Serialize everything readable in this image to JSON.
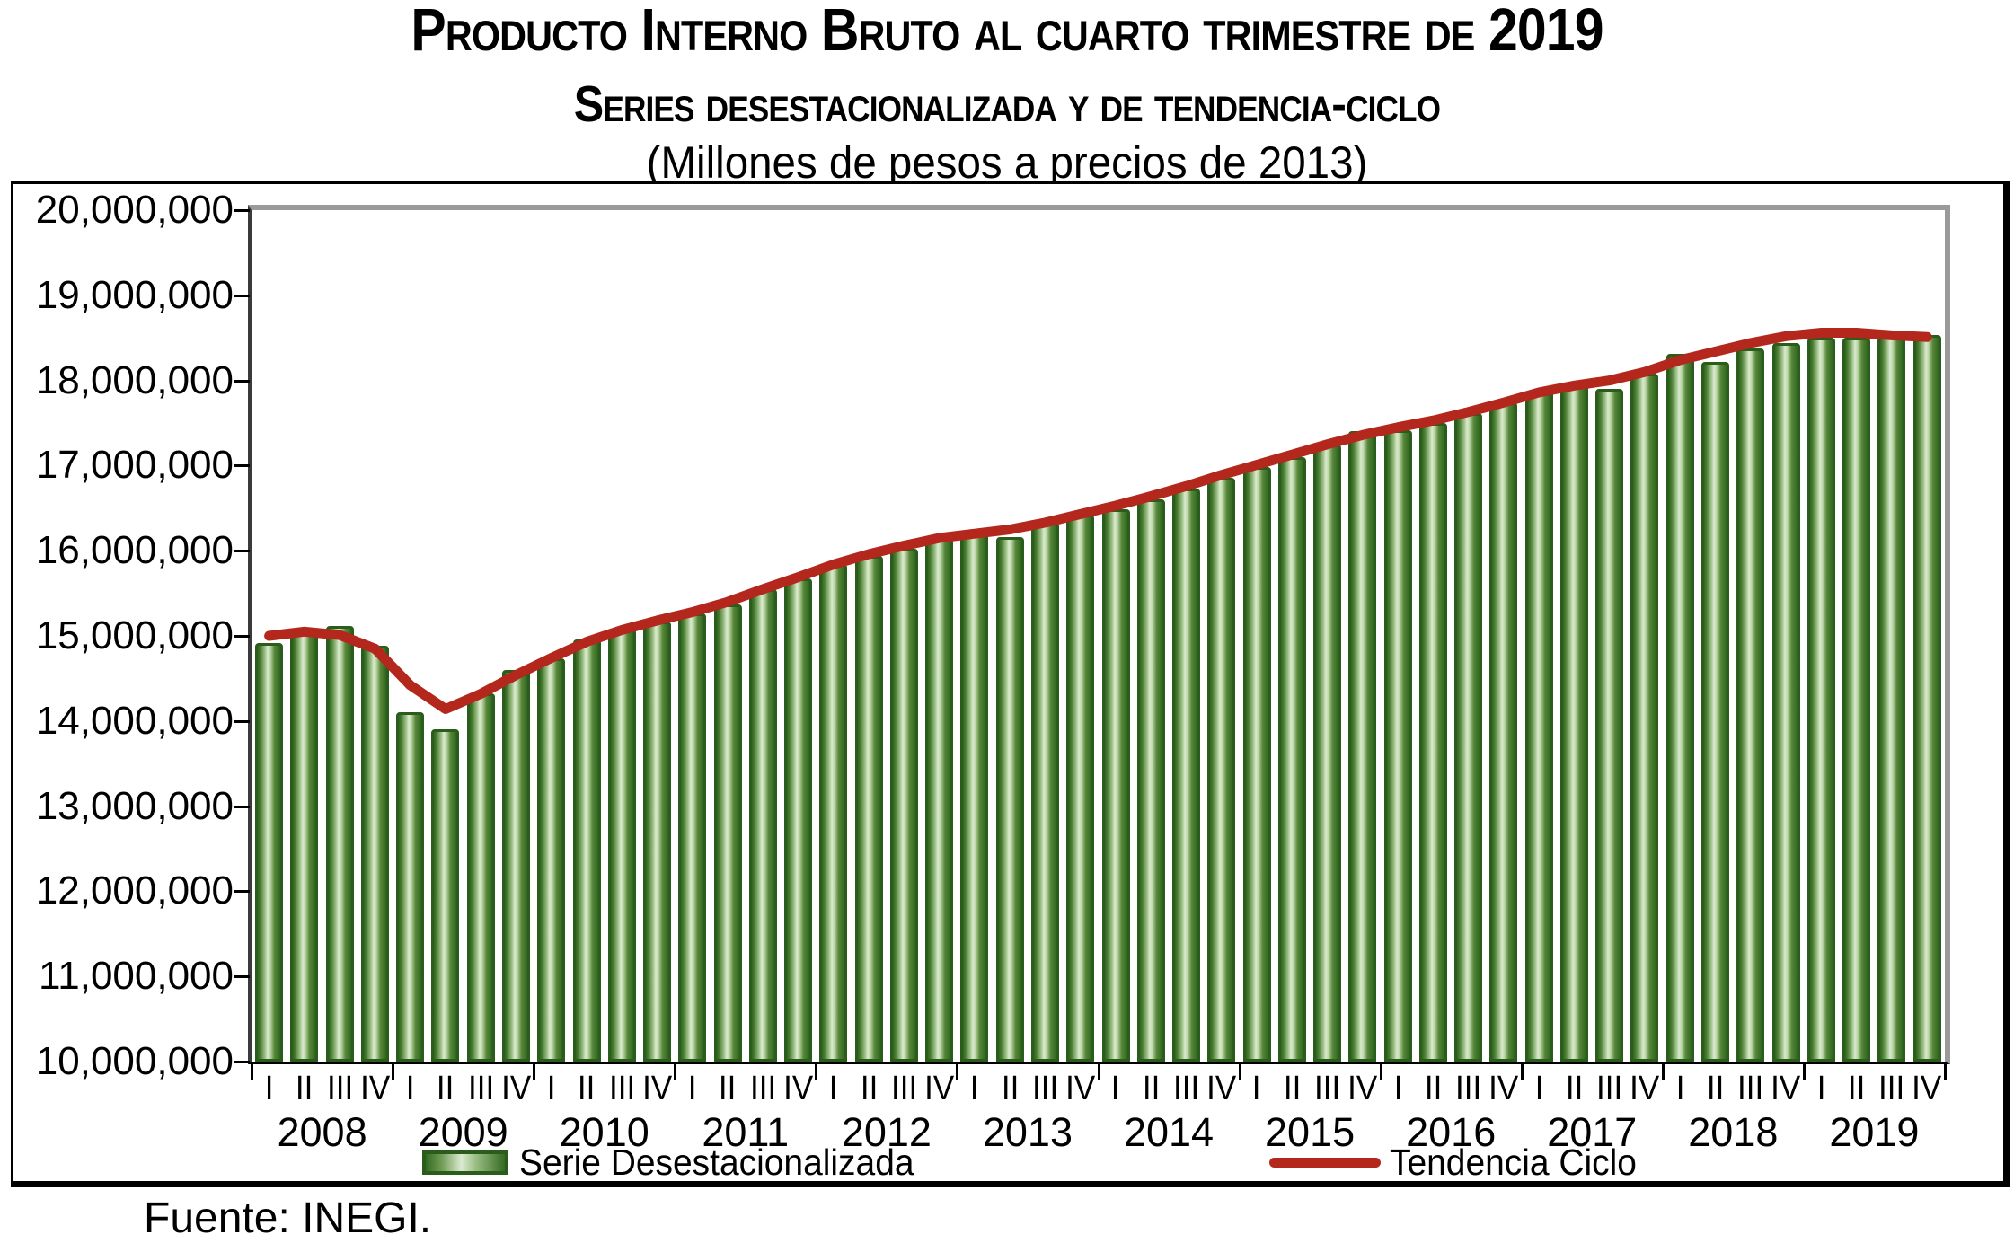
{
  "title": {
    "line1": "Producto Interno Bruto al cuarto trimestre de 2019",
    "line2": "Series desestacionalizada y de tendencia-ciclo",
    "line3": "(Millones de pesos a precios de 2013)"
  },
  "legend": {
    "bars_label": "Serie Desestacionalizada",
    "line_label": "Tendencia Ciclo"
  },
  "source_note": "Fuente: INEGI.",
  "colors": {
    "bar_dark_green": "#2f6620",
    "bar_light_green": "#dcead0",
    "bar_border_green": "#2a5c1b",
    "trend_red": "#b3271c",
    "frame_gray": "#9a9a9a",
    "text_black": "#000000"
  },
  "chart_data": {
    "type": "bar",
    "title": "Producto Interno Bruto al cuarto trimestre de 2019",
    "subtitle": "Series desestacionalizada y de tendencia-ciclo",
    "unit_label": "Millones de pesos a precios de 2013",
    "ylim": [
      10000000,
      20000000
    ],
    "ytick_step": 1000000,
    "ytick_labels": [
      "20,000,000",
      "19,000,000",
      "18,000,000",
      "17,000,000",
      "16,000,000",
      "15,000,000",
      "14,000,000",
      "13,000,000",
      "12,000,000",
      "11,000,000",
      "10,000,000"
    ],
    "quarters": [
      "I",
      "II",
      "III",
      "IV"
    ],
    "years": [
      "2008",
      "2009",
      "2010",
      "2011",
      "2012",
      "2013",
      "2014",
      "2015",
      "2016",
      "2017",
      "2018",
      "2019"
    ],
    "legend_position": "bottom",
    "grid": false,
    "series": [
      {
        "name": "Serie Desestacionalizada",
        "type": "bar",
        "values": [
          14920000,
          15060000,
          15120000,
          14880000,
          14100000,
          13900000,
          14330000,
          14600000,
          14740000,
          14960000,
          15080000,
          15170000,
          15260000,
          15370000,
          15550000,
          15670000,
          15840000,
          15940000,
          16020000,
          16140000,
          16200000,
          16160000,
          16330000,
          16420000,
          16490000,
          16600000,
          16730000,
          16860000,
          16980000,
          17100000,
          17250000,
          17400000,
          17420000,
          17500000,
          17620000,
          17740000,
          17880000,
          17950000,
          17900000,
          18080000,
          18310000,
          18220000,
          18380000,
          18440000,
          18500000,
          18500000,
          18510000,
          18530000
        ]
      },
      {
        "name": "Tendencia Ciclo",
        "type": "line",
        "values": [
          15000000,
          15050000,
          15010000,
          14850000,
          14420000,
          14140000,
          14320000,
          14540000,
          14740000,
          14930000,
          15070000,
          15180000,
          15280000,
          15400000,
          15550000,
          15690000,
          15840000,
          15960000,
          16060000,
          16150000,
          16200000,
          16250000,
          16330000,
          16430000,
          16530000,
          16640000,
          16760000,
          16890000,
          17010000,
          17130000,
          17250000,
          17360000,
          17450000,
          17530000,
          17630000,
          17740000,
          17860000,
          17940000,
          18000000,
          18100000,
          18240000,
          18340000,
          18440000,
          18520000,
          18560000,
          18560000,
          18530000,
          18510000
        ]
      }
    ]
  }
}
